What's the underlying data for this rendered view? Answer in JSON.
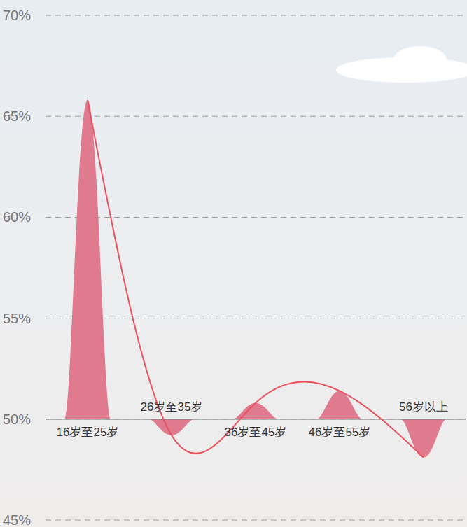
{
  "chart_data": {
    "type": "bar",
    "categories": [
      "16岁至25岁",
      "26岁至35岁",
      "36岁至45岁",
      "46岁至55岁",
      "56岁以上"
    ],
    "baseline": 50,
    "series": [
      {
        "type": "bar",
        "color": "#df7a8f",
        "values": [
          65.8,
          49.2,
          50.8,
          51.4,
          48.1
        ]
      },
      {
        "type": "line",
        "color": "#e8525e",
        "values": [
          65.8,
          49.2,
          50.8,
          51.4,
          48.1
        ]
      }
    ],
    "ylim": [
      45,
      70
    ],
    "yticks": [
      {
        "value": 45,
        "label": "45%"
      },
      {
        "value": 50,
        "label": "50%"
      },
      {
        "value": 55,
        "label": "55%"
      },
      {
        "value": 60,
        "label": "60%"
      },
      {
        "value": 65,
        "label": "65%"
      },
      {
        "value": 70,
        "label": "70%"
      }
    ],
    "grid": true
  }
}
